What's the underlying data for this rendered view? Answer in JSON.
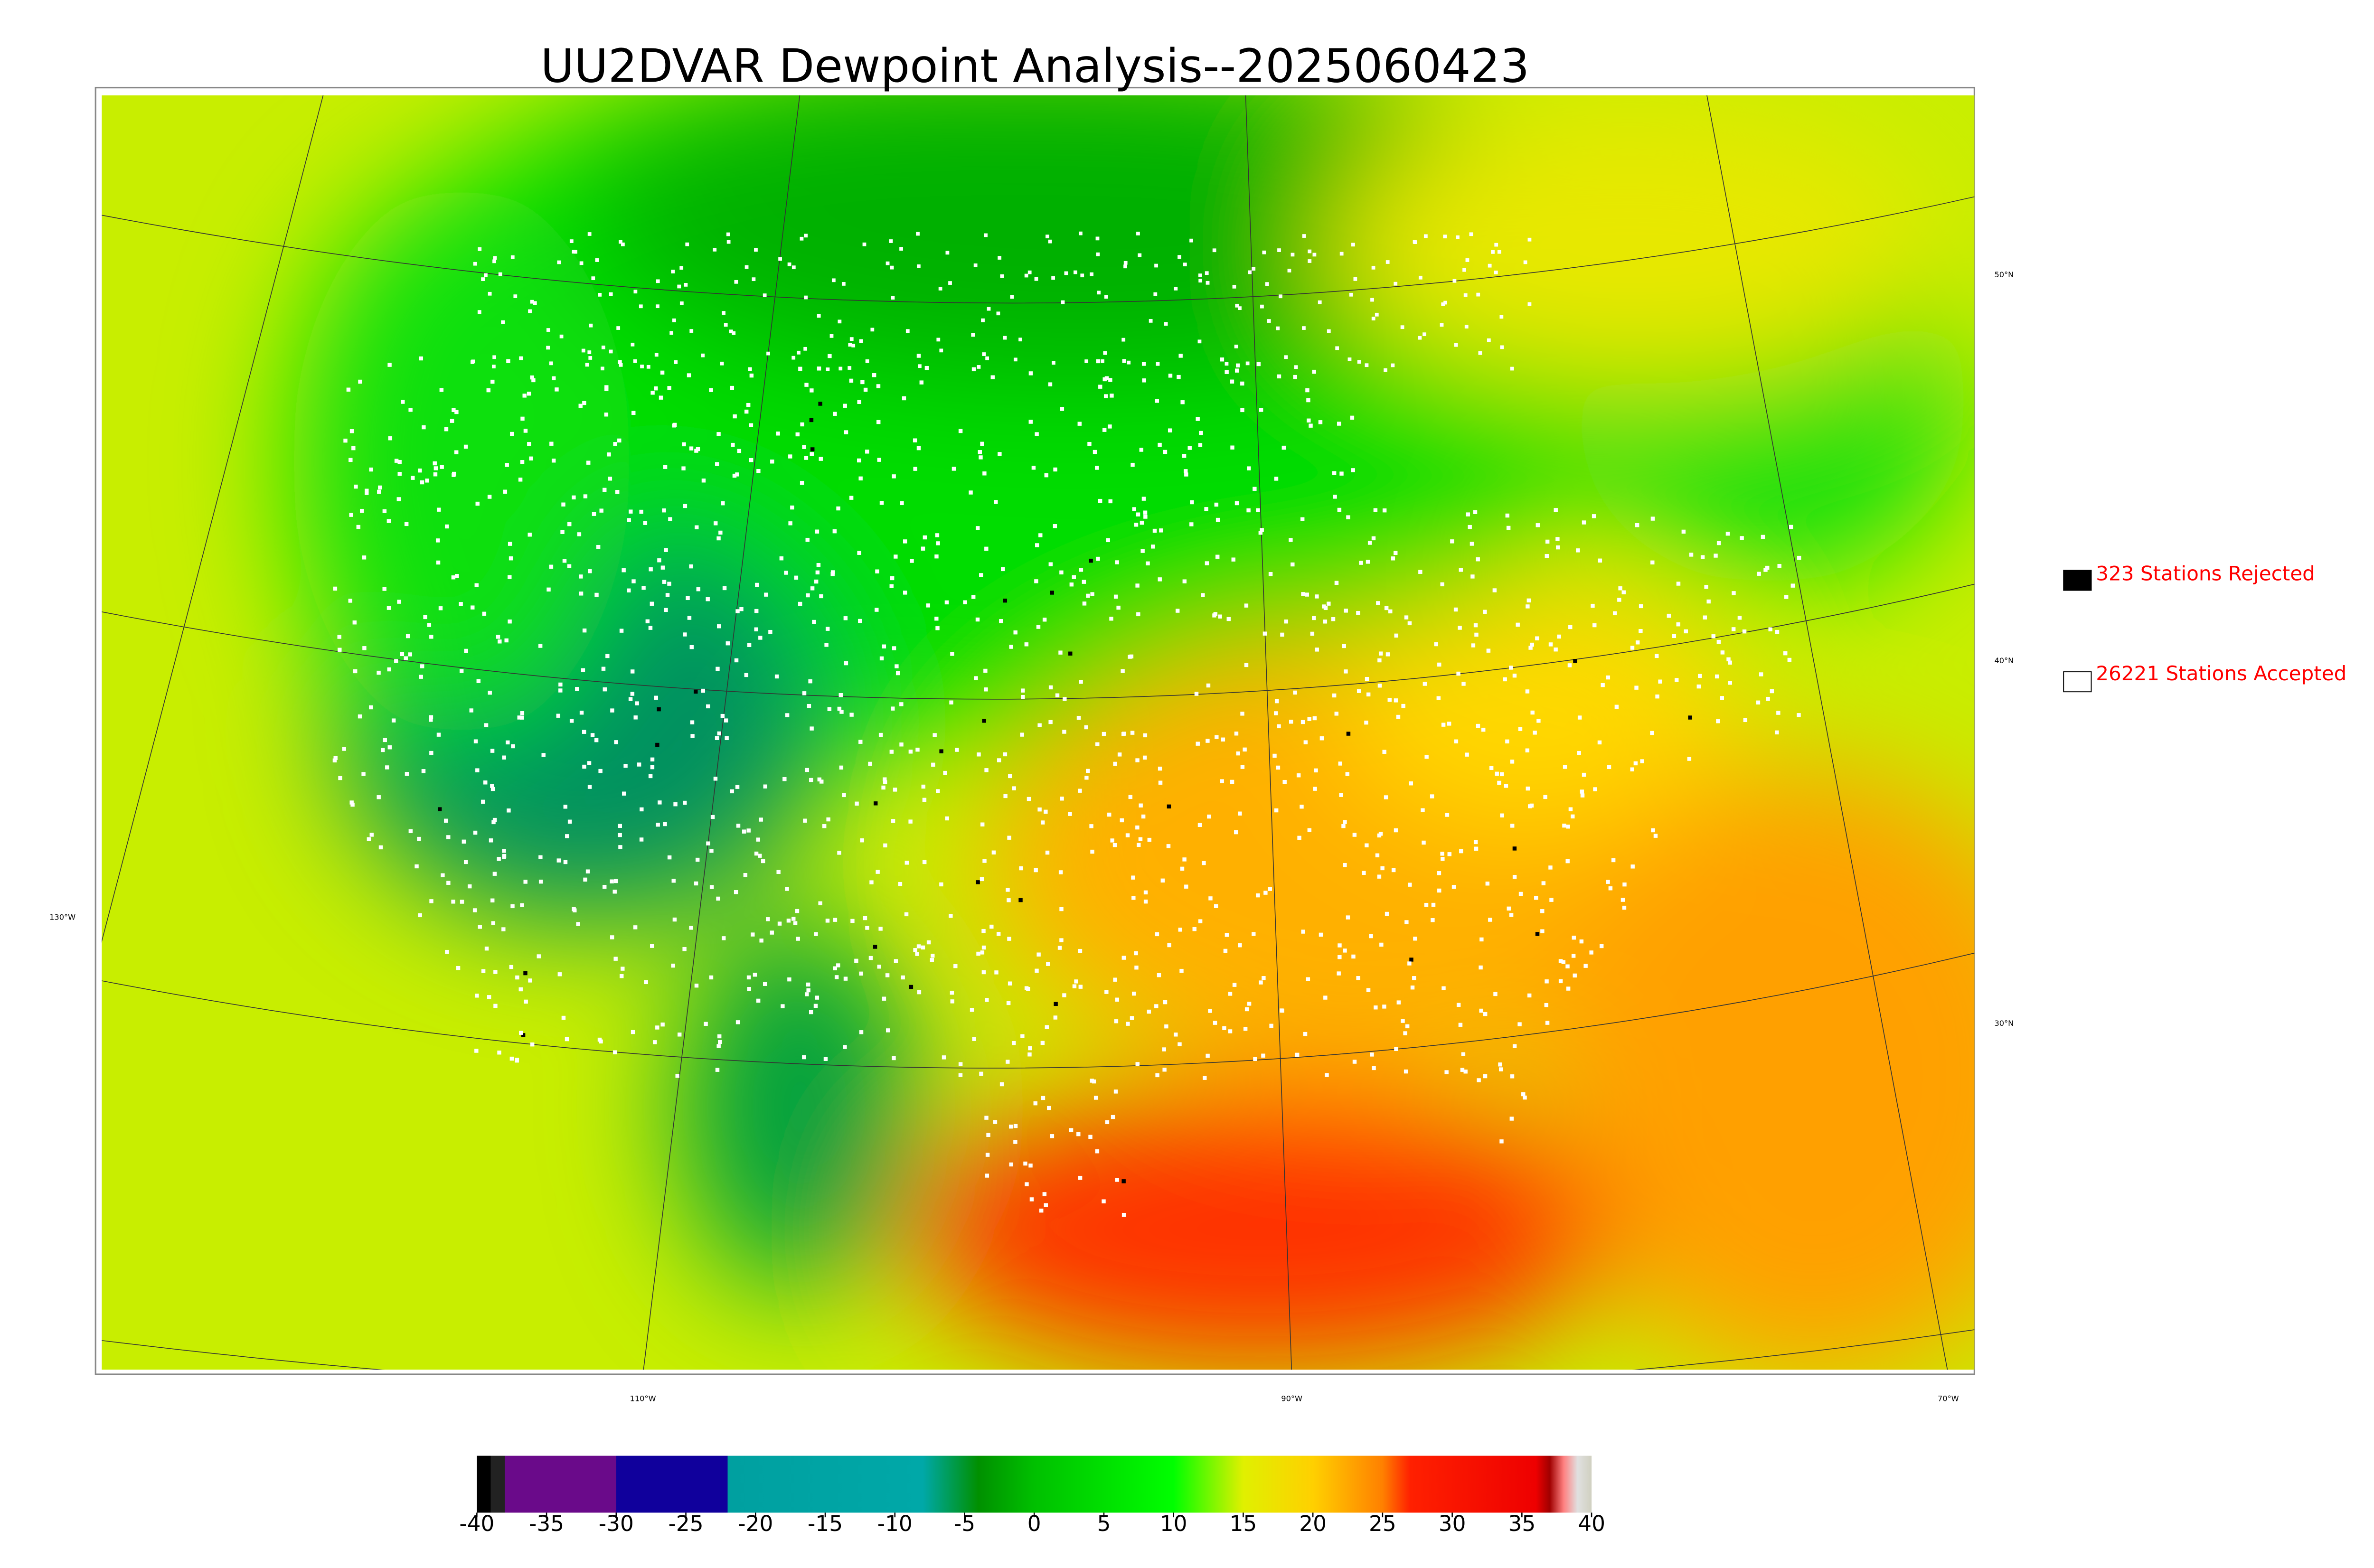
{
  "title": "UU2DVAR Dewpoint Analysis--2025060423",
  "legend": [
    {
      "label": "323 Stations Rejected",
      "color": "#000000"
    },
    {
      "label": "26221 Stations Accepted",
      "color": "#ffffff"
    }
  ],
  "latitude_labels": [
    "50°N",
    "40°N",
    "30°N"
  ],
  "longitude_labels": [
    "130°W",
    "110°W",
    "90°W",
    "70°W"
  ],
  "colorbar": {
    "lim": [
      -40,
      40
    ],
    "ticks": [
      -40,
      -35,
      -30,
      -25,
      -20,
      -15,
      -10,
      -5,
      0,
      5,
      10,
      15,
      20,
      25,
      30,
      35,
      40
    ],
    "stops": [
      [
        -40,
        "#000000"
      ],
      [
        -39,
        "#000000"
      ],
      [
        -39,
        "#222222"
      ],
      [
        -38,
        "#222222"
      ],
      [
        -38,
        "#6a0a8a"
      ],
      [
        -30,
        "#6a0a8a"
      ],
      [
        -30,
        "#10009c"
      ],
      [
        -22,
        "#10009c"
      ],
      [
        -22,
        "#00a0a0"
      ],
      [
        -8,
        "#00a8a8"
      ],
      [
        -4,
        "#009000"
      ],
      [
        0,
        "#00c000"
      ],
      [
        10,
        "#00ff00"
      ],
      [
        15,
        "#e0f000"
      ],
      [
        20,
        "#ffd000"
      ],
      [
        25,
        "#ff8000"
      ],
      [
        27,
        "#ff2000"
      ],
      [
        36,
        "#ee0000"
      ],
      [
        37,
        "#a00000"
      ],
      [
        38,
        "#ff8080"
      ],
      [
        39,
        "#e0e0e0"
      ],
      [
        40,
        "#d0d0c0"
      ]
    ]
  }
}
